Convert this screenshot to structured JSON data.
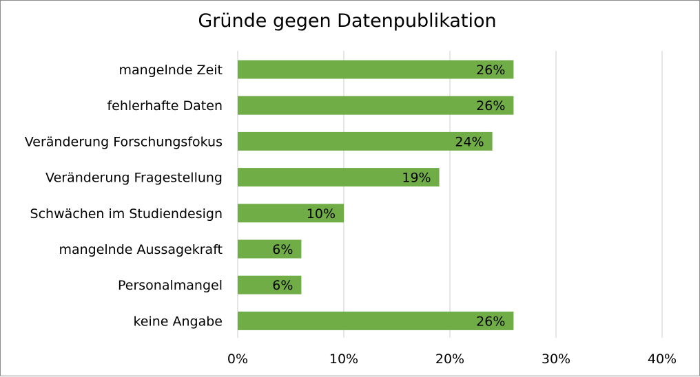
{
  "chart_data": {
    "type": "bar",
    "orientation": "horizontal",
    "title": "Gründe gegen Datenpublikation",
    "xlabel": "",
    "ylabel": "",
    "categories": [
      "mangelnde Zeit",
      "fehlerhafte Daten",
      "Veränderung Forschungsfokus",
      "Veränderung Fragestellung",
      "Schwächen im Studiendesign",
      "mangelnde Aussagekraft",
      "Personalmangel",
      "keine Angabe"
    ],
    "values": [
      26,
      26,
      24,
      19,
      10,
      6,
      6,
      26
    ],
    "data_labels": [
      "26%",
      "26%",
      "24%",
      "19%",
      "10%",
      "6%",
      "6%",
      "26%"
    ],
    "x_ticks": [
      0,
      10,
      20,
      30,
      40
    ],
    "x_tick_labels": [
      "0%",
      "10%",
      "20%",
      "30%",
      "40%"
    ],
    "xlim": [
      0,
      40
    ],
    "unit": "%",
    "grid": "vertical",
    "legend": "none",
    "bar_color": "#70ad47",
    "grid_color": "#d9d9d9"
  }
}
